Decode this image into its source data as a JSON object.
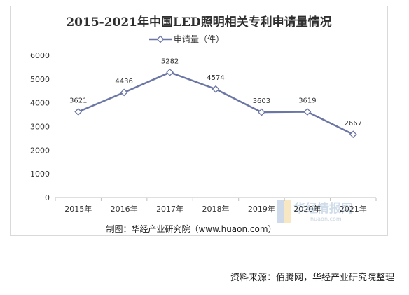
{
  "source_note": "资料来源：佰腾网，华经产业研究院整理",
  "watermark": {
    "text": "华经情报网",
    "sub": "huaon.com"
  },
  "colors": {
    "line": "#6b76a4",
    "axis": "#bfbfbf"
  },
  "chart_data": {
    "type": "line",
    "title": "2015-2021年中国LED照明相关专利申请量情况",
    "categories": [
      "2015年",
      "2016年",
      "2017年",
      "2018年",
      "2019年",
      "2020年",
      "2021年"
    ],
    "series": [
      {
        "name": "申请量（件）",
        "values": [
          3621,
          4436,
          5282,
          4574,
          3603,
          3619,
          2667
        ],
        "marker": "diamond"
      }
    ],
    "ylim": [
      0,
      6000
    ],
    "yticks": [
      0,
      1000,
      2000,
      3000,
      4000,
      5000,
      6000
    ],
    "legend": "top-center",
    "grid": false,
    "credit": "制图：华经产业研究院（www.huaon.com）"
  }
}
